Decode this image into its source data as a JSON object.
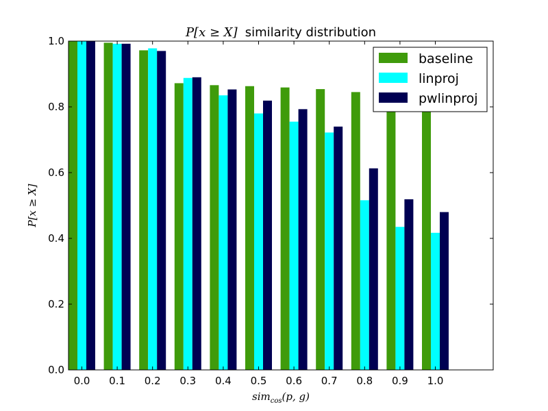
{
  "chart_data": {
    "type": "bar",
    "title_math": "P[x ≥ X]",
    "title_text": "similarity distribution",
    "xlabel": "sim_cos(p, g)",
    "xlabel_main": "sim",
    "xlabel_sub": "cos",
    "xlabel_args": "(p, g)",
    "ylabel": "P[x ≥ X]",
    "ylim": [
      0,
      1.0
    ],
    "yticks": [
      "0.0",
      "0.2",
      "0.4",
      "0.6",
      "0.8",
      "1.0"
    ],
    "categories": [
      "0.0",
      "0.1",
      "0.2",
      "0.3",
      "0.4",
      "0.5",
      "0.6",
      "0.7",
      "0.8",
      "0.9",
      "1.0"
    ],
    "series": [
      {
        "name": "baseline",
        "color": "#3f9b0b",
        "values": [
          1.0,
          0.995,
          0.972,
          0.872,
          0.866,
          0.863,
          0.859,
          0.854,
          0.845,
          0.84,
          0.84
        ]
      },
      {
        "name": "linproj",
        "color": "#00ffff",
        "values": [
          1.0,
          0.992,
          0.978,
          0.888,
          0.835,
          0.78,
          0.755,
          0.722,
          0.516,
          0.435,
          0.417
        ]
      },
      {
        "name": "pwlinproj",
        "color": "#000052",
        "values": [
          1.0,
          0.992,
          0.97,
          0.89,
          0.853,
          0.819,
          0.793,
          0.74,
          0.613,
          0.519,
          0.48
        ]
      }
    ],
    "legend_position": "top-right",
    "grid": false
  }
}
